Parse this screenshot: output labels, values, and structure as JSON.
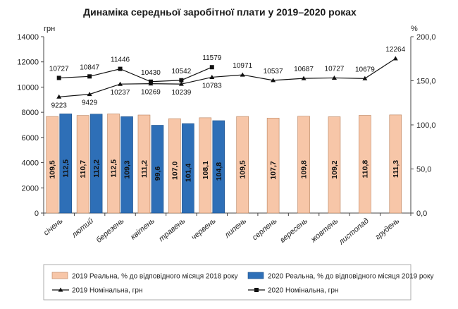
{
  "chart_data": {
    "type": "bar",
    "title": "Динаміка середньої заробітної плати у 2019–2020 роках",
    "left_axis": {
      "unit": "грн",
      "ylim": [
        0,
        14000
      ],
      "ticks": [
        0,
        2000,
        4000,
        6000,
        8000,
        10000,
        12000,
        14000
      ]
    },
    "right_axis": {
      "unit": "%",
      "ylim": [
        0,
        200
      ],
      "ticks": [
        "0,0",
        "50,0",
        "100,0",
        "150,0",
        "200,0"
      ]
    },
    "categories": [
      "січень",
      "лютий",
      "березень",
      "квітень",
      "травень",
      "червень",
      "липень",
      "серпень",
      "вересень",
      "жовтень",
      "листопад",
      "грудень"
    ],
    "series": [
      {
        "name": "2019 Реальна, % до відповідного місяця 2018 року",
        "kind": "bar",
        "axis": "right",
        "color": "#f7c6a8",
        "stroke": "#b8805c",
        "values": [
          109.5,
          110.7,
          112.5,
          111.2,
          107.0,
          108.1,
          109.5,
          107.7,
          109.8,
          109.2,
          110.8,
          111.3
        ],
        "labels": [
          "109,5",
          "110,7",
          "112,5",
          "111,2",
          "107,0",
          "108,1",
          "109,5",
          "107,7",
          "109,8",
          "109,2",
          "110,8",
          "111,3"
        ]
      },
      {
        "name": "2020 Реальна, % до відповідного місяця 2019 року",
        "kind": "bar",
        "axis": "right",
        "color": "#2e6fb7",
        "stroke": "#1f4f86",
        "values": [
          112.5,
          112.2,
          109.3,
          99.6,
          101.4,
          104.8,
          null,
          null,
          null,
          null,
          null,
          null
        ],
        "labels": [
          "112,5",
          "112,2",
          "109,3",
          "99,6",
          "101,4",
          "104,8",
          "",
          "",
          "",
          "",
          "",
          ""
        ]
      },
      {
        "name": "2019 Номінальна, грн",
        "kind": "line",
        "marker": "triangle",
        "axis": "left",
        "color": "#111111",
        "values": [
          9223,
          9429,
          10237,
          10269,
          10239,
          10783,
          10971,
          10537,
          10687,
          10727,
          10679,
          12264
        ],
        "labels": [
          "9223",
          "9429",
          "10237",
          "10269",
          "10239",
          "10783",
          "10971",
          "10537",
          "10687",
          "10727",
          "10679",
          "12264"
        ]
      },
      {
        "name": "2020 Номінальна, грн",
        "kind": "line",
        "marker": "square",
        "axis": "left",
        "color": "#111111",
        "values": [
          10727,
          10847,
          11446,
          10430,
          10542,
          11579,
          null,
          null,
          null,
          null,
          null,
          null
        ],
        "labels": [
          "10727",
          "10847",
          "11446",
          "10430",
          "10542",
          "11579",
          "",
          "",
          "",
          "",
          "",
          ""
        ]
      }
    ],
    "grid": false,
    "legend_position": "bottom"
  }
}
